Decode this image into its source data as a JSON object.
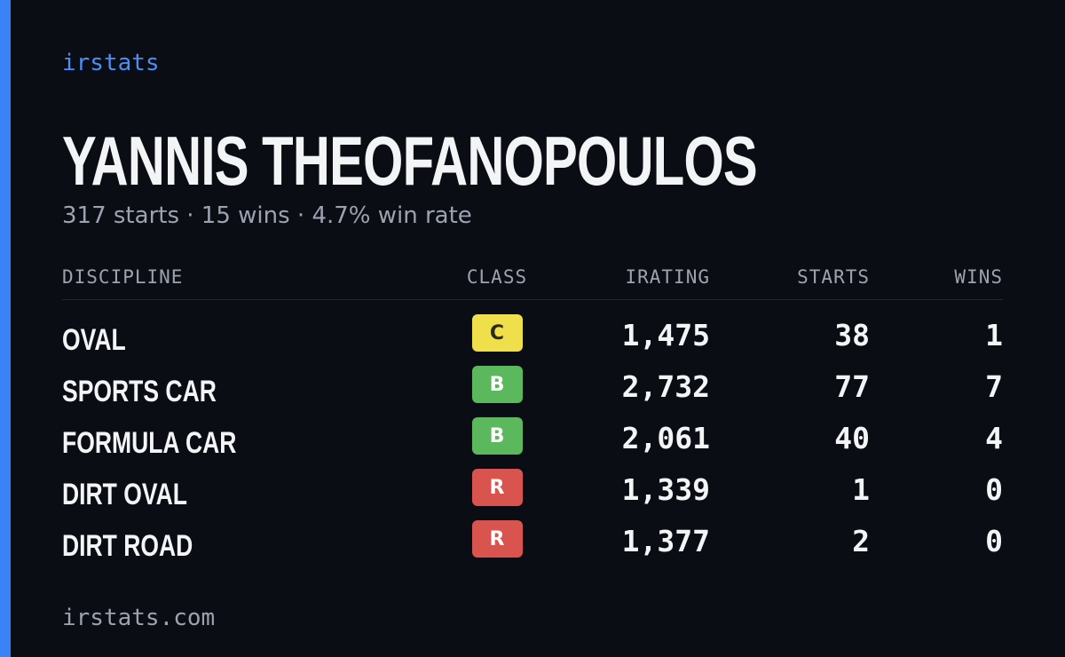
{
  "brand": "irstats",
  "driver": {
    "name": "YANNIS THEOFANOPOULOS",
    "summary": "317 starts · 15 wins · 4.7% win rate"
  },
  "table": {
    "headers": [
      "DISCIPLINE",
      "CLASS",
      "IRATING",
      "STARTS",
      "WINS"
    ],
    "class_colors": {
      "C": "#efdf4a",
      "B": "#5cb85c",
      "R": "#d9534f"
    },
    "class_text_colors": {
      "C": "#2a2a10",
      "B": "#ffffff",
      "R": "#ffffff"
    },
    "rows": [
      [
        "OVAL",
        "C",
        "1,475",
        38,
        1
      ],
      [
        "SPORTS CAR",
        "B",
        "2,732",
        77,
        7
      ],
      [
        "FORMULA CAR",
        "B",
        "2,061",
        40,
        4
      ],
      [
        "DIRT OVAL",
        "R",
        "1,339",
        1,
        0
      ],
      [
        "DIRT ROAD",
        "R",
        "1,377",
        2,
        0
      ]
    ]
  },
  "footer": "irstats.com"
}
